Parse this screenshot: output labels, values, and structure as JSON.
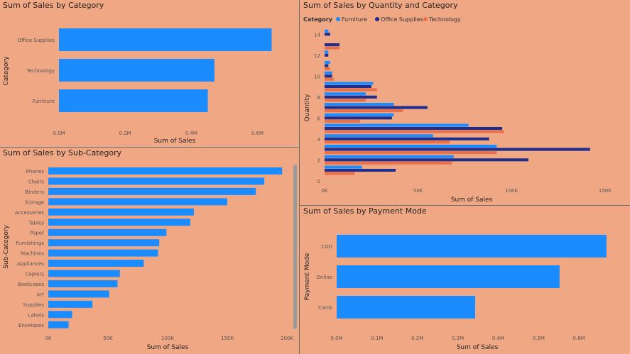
{
  "colors": {
    "background": "#f0a784",
    "furniture": "#1a8cff",
    "office_supplies": "#1f2d8c",
    "technology": "#e8704b",
    "text": "#222222",
    "axis_text": "#555555",
    "divider": "#6b6b6b",
    "scrollbar": "#9a9a9a"
  },
  "chart_data": [
    {
      "id": "category",
      "type": "bar",
      "orientation": "horizontal",
      "title": "Sum of Sales by Category",
      "xlabel": "Sum of Sales",
      "ylabel": "Category",
      "categories": [
        "Office Supplies",
        "Technology",
        "Furniture"
      ],
      "values": [
        643000,
        470000,
        450000
      ],
      "xlim": [
        0,
        700000
      ],
      "xticks": [
        "0.0M",
        "0.2M",
        "0.4M",
        "0.6M"
      ],
      "xtick_values": [
        0,
        200000,
        400000,
        600000
      ],
      "color": "#1a8cff"
    },
    {
      "id": "subcategory",
      "type": "bar",
      "orientation": "horizontal",
      "title": "Sum of Sales by Sub-Category",
      "xlabel": "Sum of Sales",
      "ylabel": "Sub-Category",
      "categories": [
        "Phones",
        "Chairs",
        "Binders",
        "Storage",
        "Accessories",
        "Tables",
        "Paper",
        "Furnishings",
        "Machines",
        "Appliances",
        "Copiers",
        "Bookcases",
        "Art",
        "Supplies",
        "Labels",
        "Envelopes"
      ],
      "values": [
        196000,
        181000,
        174000,
        150000,
        122000,
        119000,
        99000,
        93000,
        92000,
        80000,
        60000,
        58000,
        51000,
        37000,
        20000,
        17000
      ],
      "xlim": [
        0,
        200000
      ],
      "xticks": [
        "0K",
        "50K",
        "100K",
        "150K",
        "200K"
      ],
      "xtick_values": [
        0,
        50000,
        100000,
        150000,
        200000
      ],
      "color": "#1a8cff"
    },
    {
      "id": "quantity",
      "type": "bar",
      "orientation": "horizontal",
      "title": "Sum of Sales by Quantity and Category",
      "xlabel": "Sum of Sales",
      "ylabel": "Quantity",
      "legend_title": "Category",
      "legend_position": "top-left",
      "quantities": [
        1,
        2,
        3,
        4,
        5,
        6,
        7,
        8,
        9,
        10,
        11,
        12,
        13,
        14
      ],
      "series": [
        {
          "name": "Furniture",
          "color": "#1a8cff",
          "values": [
            20000,
            69000,
            92000,
            58000,
            77000,
            37000,
            37000,
            22000,
            26000,
            4000,
            3000,
            2000,
            0,
            2000
          ]
        },
        {
          "name": "Office Supplies",
          "color": "#1f2d8c",
          "values": [
            38000,
            109000,
            142000,
            88000,
            95000,
            36000,
            55000,
            28000,
            25000,
            4000,
            2000,
            2000,
            8000,
            3000
          ]
        },
        {
          "name": "Technology",
          "color": "#e8704b",
          "values": [
            16000,
            68000,
            92000,
            67000,
            96000,
            19000,
            42000,
            22000,
            28000,
            5000,
            3000,
            0,
            8000,
            0
          ]
        }
      ],
      "xlim": [
        0,
        155000
      ],
      "xticks": [
        "0K",
        "50K",
        "100K",
        "150K"
      ],
      "xtick_values": [
        0,
        50000,
        100000,
        150000
      ],
      "yticks": [
        "0",
        "2",
        "4",
        "6",
        "8",
        "10",
        "12",
        "14"
      ],
      "ytick_values": [
        0,
        2,
        4,
        6,
        8,
        10,
        12,
        14
      ],
      "ylim": [
        0,
        14.5
      ]
    },
    {
      "id": "payment",
      "type": "bar",
      "orientation": "horizontal",
      "title": "Sum of Sales by Payment Mode",
      "xlabel": "Sum of Sales",
      "ylabel": "Payment Mode",
      "categories": [
        "COD",
        "Online",
        "Cards"
      ],
      "values": [
        668000,
        552000,
        343000
      ],
      "xlim": [
        0,
        700000
      ],
      "xticks": [
        "0.0M",
        "0.1M",
        "0.2M",
        "0.3M",
        "0.4M",
        "0.5M",
        "0.6M"
      ],
      "xtick_values": [
        0,
        100000,
        200000,
        300000,
        400000,
        500000,
        600000
      ],
      "color": "#1a8cff"
    }
  ]
}
